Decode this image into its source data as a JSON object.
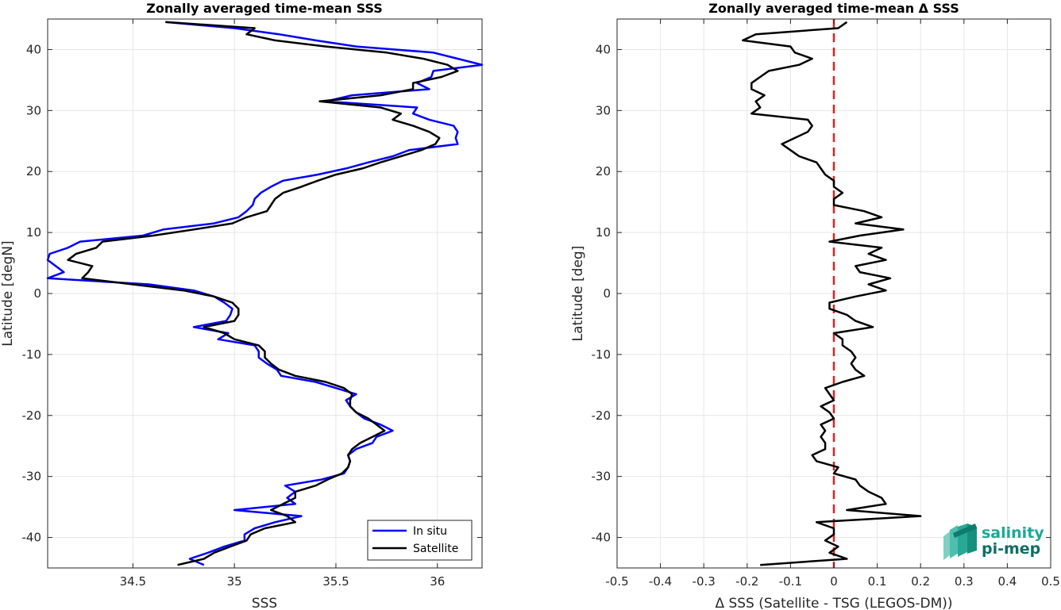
{
  "chart_data": [
    {
      "type": "line",
      "title": "Zonally averaged time-mean SSS",
      "xlabel": "SSS",
      "ylabel": "Latitude [degN]",
      "xlim": [
        34.08,
        36.22
      ],
      "ylim": [
        -45,
        45
      ],
      "xticks": [
        34.5,
        35,
        35.5,
        36
      ],
      "xtick_labels": [
        "34.5",
        "35",
        "35.5",
        "36"
      ],
      "yticks": [
        -40,
        -30,
        -20,
        -10,
        0,
        10,
        20,
        30,
        40
      ],
      "ytick_labels": [
        "-40",
        "-30",
        "-20",
        "-10",
        "0",
        "10",
        "20",
        "30",
        "40"
      ],
      "grid": true,
      "legend_position": "bottom-right",
      "series": [
        {
          "name": "In situ",
          "color": "#0000ff",
          "lat": [
            44.5,
            43.5,
            42.5,
            41.5,
            40.5,
            39.5,
            38.5,
            37.5,
            36.5,
            35.5,
            34.5,
            33.5,
            32.5,
            31.5,
            30.5,
            29.5,
            28.5,
            27.5,
            26.5,
            25.5,
            24.5,
            23.5,
            22.5,
            21.5,
            20.5,
            19.5,
            18.5,
            17.5,
            16.5,
            15.5,
            14.5,
            13.5,
            12.5,
            11.5,
            10.5,
            9.5,
            8.5,
            7.5,
            6.5,
            5.5,
            4.5,
            3.5,
            2.5,
            1.5,
            0.5,
            -0.5,
            -1.5,
            -2.5,
            -3.5,
            -4.5,
            -5.5,
            -6.5,
            -7.5,
            -8.5,
            -9.5,
            -10.5,
            -11.5,
            -12.5,
            -13.5,
            -14.5,
            -15.5,
            -16.5,
            -17.5,
            -18.5,
            -19.5,
            -20.5,
            -21.5,
            -22.5,
            -23.5,
            -24.5,
            -25.5,
            -26.5,
            -27.5,
            -28.5,
            -29.5,
            -30.5,
            -31.5,
            -32.5,
            -33.5,
            -34.5,
            -35.5,
            -36.5,
            -37.5,
            -38.5,
            -39.5,
            -40.5,
            -41.5,
            -42.5,
            -43.5,
            -44.5
          ],
          "sss": [
            34.66,
            35.0,
            35.22,
            35.4,
            35.6,
            35.98,
            36.1,
            36.22,
            35.98,
            35.97,
            35.9,
            35.96,
            35.58,
            35.45,
            35.9,
            35.88,
            35.96,
            36.08,
            36.1,
            36.09,
            36.1,
            35.86,
            35.78,
            35.66,
            35.55,
            35.41,
            35.24,
            35.18,
            35.13,
            35.1,
            35.09,
            35.06,
            35.02,
            34.9,
            34.65,
            34.55,
            34.24,
            34.18,
            34.09,
            34.08,
            34.12,
            34.16,
            34.08,
            34.58,
            34.8,
            34.9,
            34.95,
            34.99,
            34.98,
            34.96,
            34.8,
            34.97,
            34.92,
            35.1,
            35.12,
            35.12,
            35.16,
            35.21,
            35.23,
            35.4,
            35.5,
            35.6,
            35.55,
            35.57,
            35.6,
            35.64,
            35.72,
            35.78,
            35.7,
            35.68,
            35.6,
            35.56,
            35.57,
            35.56,
            35.54,
            35.43,
            35.25,
            35.3,
            35.26,
            35.3,
            35.0,
            35.33,
            35.2,
            35.1,
            35.05,
            35.05,
            34.95,
            34.87,
            34.78,
            34.85
          ]
        },
        {
          "name": "Satellite",
          "color": "#000000",
          "lat": [
            44.5,
            43.5,
            42.5,
            41.5,
            40.5,
            39.5,
            38.5,
            37.5,
            36.5,
            35.5,
            34.5,
            33.5,
            32.5,
            31.5,
            30.5,
            29.5,
            28.5,
            27.5,
            26.5,
            25.5,
            24.5,
            23.5,
            22.5,
            21.5,
            20.5,
            19.5,
            18.5,
            17.5,
            16.5,
            15.5,
            14.5,
            13.5,
            12.5,
            11.5,
            10.5,
            9.5,
            8.5,
            7.5,
            6.5,
            5.5,
            4.5,
            3.5,
            2.5,
            1.5,
            0.5,
            -0.5,
            -1.5,
            -2.5,
            -3.5,
            -4.5,
            -5.5,
            -6.5,
            -7.5,
            -8.5,
            -9.5,
            -10.5,
            -11.5,
            -12.5,
            -13.5,
            -14.5,
            -15.5,
            -16.5,
            -17.5,
            -18.5,
            -19.5,
            -20.5,
            -21.5,
            -22.5,
            -23.5,
            -24.5,
            -25.5,
            -26.5,
            -27.5,
            -28.5,
            -29.5,
            -30.5,
            -31.5,
            -32.5,
            -33.5,
            -34.5,
            -35.5,
            -36.5,
            -37.5,
            -38.5,
            -39.5,
            -40.5,
            -41.5,
            -42.5,
            -43.5,
            -44.5
          ],
          "sss": [
            34.66,
            35.1,
            35.06,
            35.2,
            35.45,
            35.75,
            35.93,
            36.05,
            36.1,
            36.02,
            35.88,
            35.88,
            35.72,
            35.42,
            35.72,
            35.82,
            35.78,
            35.88,
            35.96,
            36.01,
            35.99,
            35.92,
            35.82,
            35.72,
            35.63,
            35.5,
            35.41,
            35.33,
            35.24,
            35.2,
            35.18,
            35.16,
            35.06,
            34.99,
            34.8,
            34.6,
            34.35,
            34.32,
            34.22,
            34.18,
            34.3,
            34.28,
            34.25,
            34.5,
            34.75,
            34.9,
            34.99,
            35.02,
            35.02,
            35.0,
            34.85,
            34.95,
            35.0,
            35.12,
            35.15,
            35.15,
            35.18,
            35.22,
            35.3,
            35.45,
            35.54,
            35.58,
            35.57,
            35.57,
            35.6,
            35.66,
            35.7,
            35.74,
            35.68,
            35.62,
            35.58,
            35.56,
            35.57,
            35.56,
            35.53,
            35.46,
            35.4,
            35.3,
            35.3,
            35.24,
            35.18,
            35.26,
            35.3,
            35.15,
            35.08,
            35.06,
            34.98,
            34.9,
            34.85,
            34.72
          ]
        }
      ]
    },
    {
      "type": "line",
      "title": "Zonally averaged time-mean Δ SSS",
      "xlabel": "Δ SSS (Satellite - TSG (LEGOS-DM))",
      "ylabel": "Latitude [deg]",
      "xlim": [
        -0.5,
        0.5
      ],
      "ylim": [
        -45,
        45
      ],
      "xticks": [
        -0.5,
        -0.4,
        -0.3,
        -0.2,
        -0.1,
        0,
        0.1,
        0.2,
        0.3,
        0.4,
        0.5
      ],
      "xtick_labels": [
        "-0.5",
        "-0.4",
        "-0.3",
        "-0.2",
        "-0.1",
        "0",
        "0.1",
        "0.2",
        "0.3",
        "0.4",
        "0.5"
      ],
      "yticks": [
        -40,
        -30,
        -20,
        -10,
        0,
        10,
        20,
        30,
        40
      ],
      "ytick_labels": [
        "-40",
        "-30",
        "-20",
        "-10",
        "0",
        "10",
        "20",
        "30",
        "40"
      ],
      "grid": true,
      "zero_line": {
        "x": 0,
        "color": "#e02020",
        "style": "dashed"
      },
      "series": [
        {
          "color": "#000000",
          "lat": [
            44.5,
            43.5,
            42.5,
            41.5,
            40.5,
            39.5,
            38.5,
            37.5,
            36.5,
            35.5,
            34.5,
            33.5,
            32.5,
            31.5,
            30.5,
            29.5,
            28.5,
            27.5,
            26.5,
            25.5,
            24.5,
            23.5,
            22.5,
            21.5,
            20.5,
            19.5,
            18.5,
            17.5,
            16.5,
            15.5,
            14.5,
            13.5,
            12.5,
            11.5,
            10.5,
            9.5,
            8.5,
            7.5,
            6.5,
            5.5,
            4.5,
            3.5,
            2.5,
            1.5,
            0.5,
            -0.5,
            -1.5,
            -2.5,
            -3.5,
            -4.5,
            -5.5,
            -6.5,
            -7.5,
            -8.5,
            -9.5,
            -10.5,
            -11.5,
            -12.5,
            -13.5,
            -14.5,
            -15.5,
            -16.5,
            -17.5,
            -18.5,
            -19.5,
            -20.5,
            -21.5,
            -22.5,
            -23.5,
            -24.5,
            -25.5,
            -26.5,
            -27.5,
            -28.5,
            -29.5,
            -30.5,
            -31.5,
            -32.5,
            -33.5,
            -34.5,
            -35.5,
            -36.5,
            -37.5,
            -38.5,
            -39.5,
            -40.5,
            -41.5,
            -42.5,
            -43.5,
            -44.5
          ],
          "delta": [
            0.03,
            0.01,
            -0.18,
            -0.21,
            -0.1,
            -0.09,
            -0.05,
            -0.08,
            -0.15,
            -0.17,
            -0.19,
            -0.19,
            -0.16,
            -0.18,
            -0.17,
            -0.19,
            -0.06,
            -0.05,
            -0.06,
            -0.09,
            -0.12,
            -0.1,
            -0.08,
            -0.04,
            -0.03,
            -0.02,
            0.0,
            0.0,
            0.02,
            0.0,
            0.0,
            0.07,
            0.11,
            0.05,
            0.16,
            0.06,
            -0.01,
            0.11,
            0.08,
            0.12,
            0.05,
            0.06,
            0.13,
            0.08,
            0.12,
            0.05,
            -0.01,
            -0.01,
            0.03,
            0.05,
            0.09,
            0.0,
            0.02,
            0.02,
            0.04,
            0.05,
            0.04,
            0.05,
            0.07,
            0.02,
            -0.02,
            -0.01,
            0.0,
            -0.03,
            -0.01,
            0.0,
            -0.03,
            -0.02,
            -0.03,
            -0.02,
            -0.02,
            -0.05,
            -0.04,
            0.01,
            0.0,
            0.05,
            0.06,
            0.08,
            0.11,
            0.12,
            0.03,
            0.2,
            -0.04,
            0.0,
            0.0,
            -0.02,
            0.01,
            -0.01,
            0.03,
            -0.17
          ]
        }
      ]
    }
  ],
  "legend": {
    "items": [
      "In situ",
      "Satellite"
    ]
  },
  "logo": {
    "line1": "salinity",
    "line2": "pi-mep"
  }
}
